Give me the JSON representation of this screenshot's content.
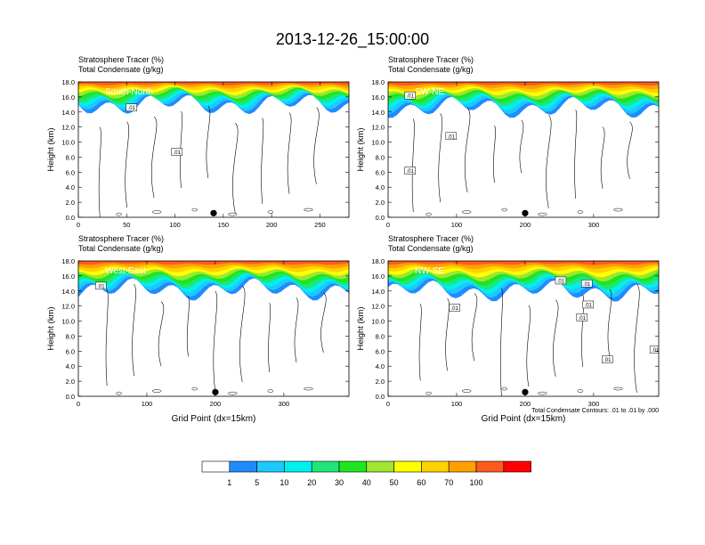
{
  "title": "2013-12-26_15:00:00",
  "colors": {
    "fill_levels": [
      "#ffffff",
      "#1e8cff",
      "#1ec8ff",
      "#00f0f0",
      "#1ee678",
      "#1ee61e",
      "#a0e632",
      "#ffff00",
      "#ffd200",
      "#ffa000",
      "#ff5a1e",
      "#ff0000"
    ],
    "contour": "#000000"
  },
  "colorbar": {
    "tick_labels": [
      "1",
      "5",
      "10",
      "20",
      "30",
      "40",
      "50",
      "60",
      "70",
      "100"
    ]
  },
  "annotations": {
    "contour_note": "Total Condensate Contours: .01 to .01 by .000",
    "contour_label": ".01"
  },
  "chart_data": [
    {
      "type": "heatmap",
      "panel": "top-left",
      "label_line1": "Stratosphere Tracer   (%)",
      "label_line2": "Total Condensate   (g/kg)",
      "cross_section": "South-North",
      "xlim": [
        0,
        280
      ],
      "xticks": [
        0,
        50,
        100,
        150,
        200,
        250
      ],
      "ylim": [
        0,
        18
      ],
      "yticks": [
        "0.0",
        "2.0",
        "4.0",
        "6.0",
        "8.0",
        "10.0",
        "12.0",
        "14.0",
        "16.0",
        "18.0"
      ],
      "ylabel": "Height (km)",
      "xlabel": "",
      "marker_x": 140,
      "contour_labels": [
        {
          "x": 55,
          "y": 14.6
        },
        {
          "x": 102,
          "y": 8.7
        }
      ],
      "tracer_base_km": 15.0
    },
    {
      "type": "heatmap",
      "panel": "top-right",
      "label_line1": "Stratosphere Tracer   (%)",
      "label_line2": "Total Condensate   (g/kg)",
      "cross_section": "SW-NE",
      "xlim": [
        0,
        395
      ],
      "xticks": [
        0,
        100,
        200,
        300
      ],
      "ylim": [
        0,
        18
      ],
      "yticks": [
        "0.0",
        "2.0",
        "4.0",
        "6.0",
        "8.0",
        "10.0",
        "12.0",
        "14.0",
        "16.0",
        "18.0"
      ],
      "ylabel": "Height (km)",
      "xlabel": "",
      "marker_x": 200,
      "contour_labels": [
        {
          "x": 32,
          "y": 16.2
        },
        {
          "x": 92,
          "y": 10.8
        },
        {
          "x": 32,
          "y": 6.2
        }
      ],
      "tracer_base_km": 14.6
    },
    {
      "type": "heatmap",
      "panel": "bottom-left",
      "label_line1": "Stratosphere Tracer   (%)",
      "label_line2": "Total Condensate   (g/kg)",
      "cross_section": "West-East",
      "xlim": [
        0,
        395
      ],
      "xticks": [
        0,
        100,
        200,
        300
      ],
      "ylim": [
        0,
        18
      ],
      "yticks": [
        "0.0",
        "2.0",
        "4.0",
        "6.0",
        "8.0",
        "10.0",
        "12.0",
        "14.0",
        "16.0",
        "18.0"
      ],
      "ylabel": "Height (km)",
      "xlabel": "Grid Point (dx=15km)",
      "marker_x": 200,
      "contour_labels": [
        {
          "x": 33,
          "y": 14.7
        }
      ],
      "tracer_base_km": 14.2
    },
    {
      "type": "heatmap",
      "panel": "bottom-right",
      "label_line1": "Stratosphere Tracer   (%)",
      "label_line2": "Total Condensate   (g/kg)",
      "cross_section": "NW-SE",
      "xlim": [
        0,
        395
      ],
      "xticks": [
        0,
        100,
        200,
        300
      ],
      "ylim": [
        0,
        18
      ],
      "yticks": [
        "0.0",
        "2.0",
        "4.0",
        "6.0",
        "8.0",
        "10.0",
        "12.0",
        "14.0",
        "16.0",
        "18.0"
      ],
      "ylabel": "Height (km)",
      "xlabel": "Grid Point (dx=15km)",
      "marker_x": 200,
      "contour_labels": [
        {
          "x": 97,
          "y": 11.8
        },
        {
          "x": 252,
          "y": 15.4
        },
        {
          "x": 290,
          "y": 15.0
        },
        {
          "x": 292,
          "y": 12.2
        },
        {
          "x": 283,
          "y": 10.5
        },
        {
          "x": 320,
          "y": 4.9
        },
        {
          "x": 390,
          "y": 6.2
        }
      ],
      "tracer_base_km": 14.0
    }
  ]
}
